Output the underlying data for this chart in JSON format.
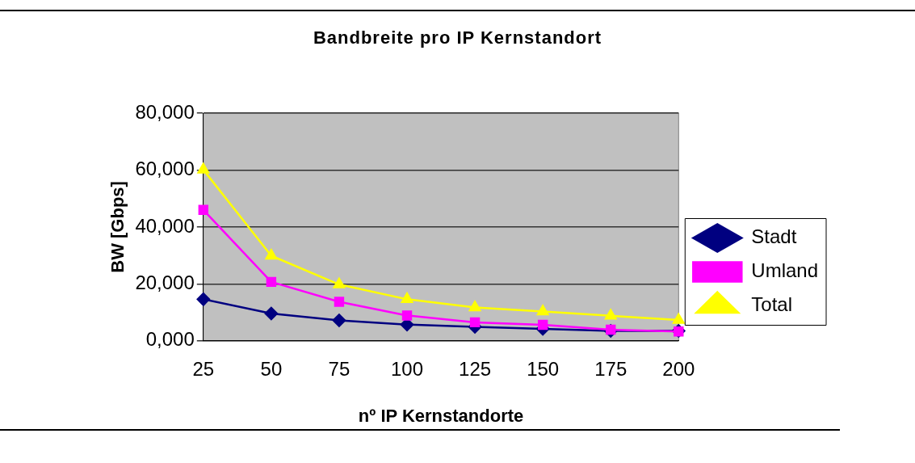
{
  "chart_data": {
    "type": "line",
    "title": "Bandbreite pro IP Kernstandort",
    "xlabel": "nº IP Kernstandorte",
    "ylabel": "BW [Gbps]",
    "categories": [
      "25",
      "50",
      "75",
      "100",
      "125",
      "150",
      "175",
      "200"
    ],
    "series": [
      {
        "name": "Stadt",
        "color": "#000080",
        "marker": "diamond",
        "values": [
          14600,
          9600,
          7200,
          5700,
          4900,
          4200,
          3500,
          3500
        ]
      },
      {
        "name": "Umland",
        "color": "#ff00ff",
        "marker": "square",
        "values": [
          46000,
          20700,
          13700,
          8900,
          6500,
          5600,
          3900,
          3300
        ]
      },
      {
        "name": "Total",
        "color": "#ffff00",
        "marker": "triangle",
        "values": [
          60100,
          29900,
          19800,
          14600,
          11700,
          10300,
          8800,
          7300
        ]
      }
    ],
    "ylim": [
      0,
      80000
    ],
    "yticks": [
      {
        "value": 0,
        "label": "0,000"
      },
      {
        "value": 20000,
        "label": "20,000"
      },
      {
        "value": 40000,
        "label": "40,000"
      },
      {
        "value": 60000,
        "label": "60,000"
      },
      {
        "value": 80000,
        "label": "80,000"
      }
    ],
    "grid": "y",
    "legend": "right",
    "line_style": "solid"
  }
}
